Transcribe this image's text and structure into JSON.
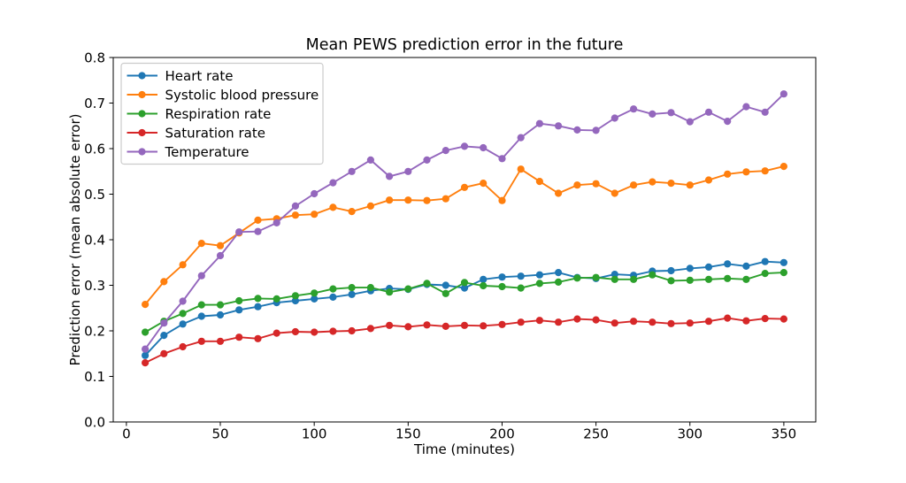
{
  "chart_data": {
    "type": "line",
    "title": "Mean PEWS prediction error in the future",
    "xlabel": "Time (minutes)",
    "ylabel": "Prediction error (mean absolute error)",
    "grid": false,
    "legend_position": "upper left",
    "xlim": [
      -7,
      367
    ],
    "ylim": [
      0,
      0.8
    ],
    "xticks": {
      "values": [
        0,
        50,
        100,
        150,
        200,
        250,
        300,
        350
      ],
      "labels": [
        "0",
        "50",
        "100",
        "150",
        "200",
        "250",
        "300",
        "350"
      ]
    },
    "yticks": {
      "values": [
        0,
        0.1,
        0.2,
        0.3,
        0.4,
        0.5,
        0.6,
        0.7,
        0.8
      ],
      "labels": [
        "0.0",
        "0.1",
        "0.2",
        "0.3",
        "0.4",
        "0.5",
        "0.6",
        "0.7",
        "0.8"
      ]
    },
    "x": [
      10,
      20,
      30,
      40,
      50,
      60,
      70,
      80,
      90,
      100,
      110,
      120,
      130,
      140,
      150,
      160,
      170,
      180,
      190,
      200,
      210,
      220,
      230,
      240,
      250,
      260,
      270,
      280,
      290,
      300,
      310,
      320,
      330,
      340,
      350
    ],
    "series": [
      {
        "name": "Heart rate",
        "color": "#1f77b4",
        "values": [
          0.146,
          0.19,
          0.215,
          0.232,
          0.235,
          0.246,
          0.253,
          0.262,
          0.266,
          0.27,
          0.274,
          0.28,
          0.288,
          0.293,
          0.291,
          0.302,
          0.3,
          0.294,
          0.313,
          0.318,
          0.32,
          0.323,
          0.328,
          0.317,
          0.315,
          0.324,
          0.322,
          0.331,
          0.332,
          0.337,
          0.34,
          0.347,
          0.342,
          0.352,
          0.35
        ]
      },
      {
        "name": "Systolic blood pressure",
        "color": "#ff7f0e",
        "values": [
          0.258,
          0.308,
          0.345,
          0.392,
          0.387,
          0.415,
          0.443,
          0.446,
          0.454,
          0.456,
          0.471,
          0.462,
          0.474,
          0.487,
          0.487,
          0.486,
          0.49,
          0.515,
          0.524,
          0.486,
          0.555,
          0.528,
          0.502,
          0.52,
          0.523,
          0.502,
          0.52,
          0.527,
          0.524,
          0.52,
          0.531,
          0.544,
          0.549,
          0.551,
          0.561
        ]
      },
      {
        "name": "Respiration rate",
        "color": "#2ca02c",
        "values": [
          0.197,
          0.221,
          0.238,
          0.257,
          0.257,
          0.266,
          0.271,
          0.27,
          0.277,
          0.283,
          0.292,
          0.295,
          0.295,
          0.285,
          0.292,
          0.304,
          0.282,
          0.306,
          0.299,
          0.297,
          0.294,
          0.304,
          0.307,
          0.316,
          0.317,
          0.313,
          0.313,
          0.323,
          0.31,
          0.311,
          0.313,
          0.315,
          0.313,
          0.326,
          0.328
        ]
      },
      {
        "name": "Saturation rate",
        "color": "#d62728",
        "values": [
          0.13,
          0.15,
          0.165,
          0.177,
          0.177,
          0.186,
          0.183,
          0.195,
          0.198,
          0.197,
          0.199,
          0.2,
          0.205,
          0.212,
          0.209,
          0.213,
          0.21,
          0.212,
          0.211,
          0.214,
          0.219,
          0.223,
          0.219,
          0.226,
          0.224,
          0.217,
          0.221,
          0.219,
          0.216,
          0.217,
          0.221,
          0.228,
          0.222,
          0.227,
          0.226
        ]
      },
      {
        "name": "Temperature",
        "color": "#9467bd",
        "values": [
          0.16,
          0.217,
          0.265,
          0.321,
          0.365,
          0.417,
          0.418,
          0.437,
          0.474,
          0.501,
          0.525,
          0.55,
          0.575,
          0.539,
          0.55,
          0.575,
          0.596,
          0.605,
          0.602,
          0.578,
          0.624,
          0.655,
          0.65,
          0.641,
          0.64,
          0.667,
          0.687,
          0.676,
          0.679,
          0.659,
          0.68,
          0.66,
          0.692,
          0.68,
          0.72
        ]
      }
    ],
    "style": {
      "spine_color": "#000000",
      "tick_color": "#000000",
      "legend_border_color": "#cccccc",
      "legend_bg_color": "#ffffff",
      "marker_radius": 4.1,
      "line_width": 1.9
    }
  }
}
